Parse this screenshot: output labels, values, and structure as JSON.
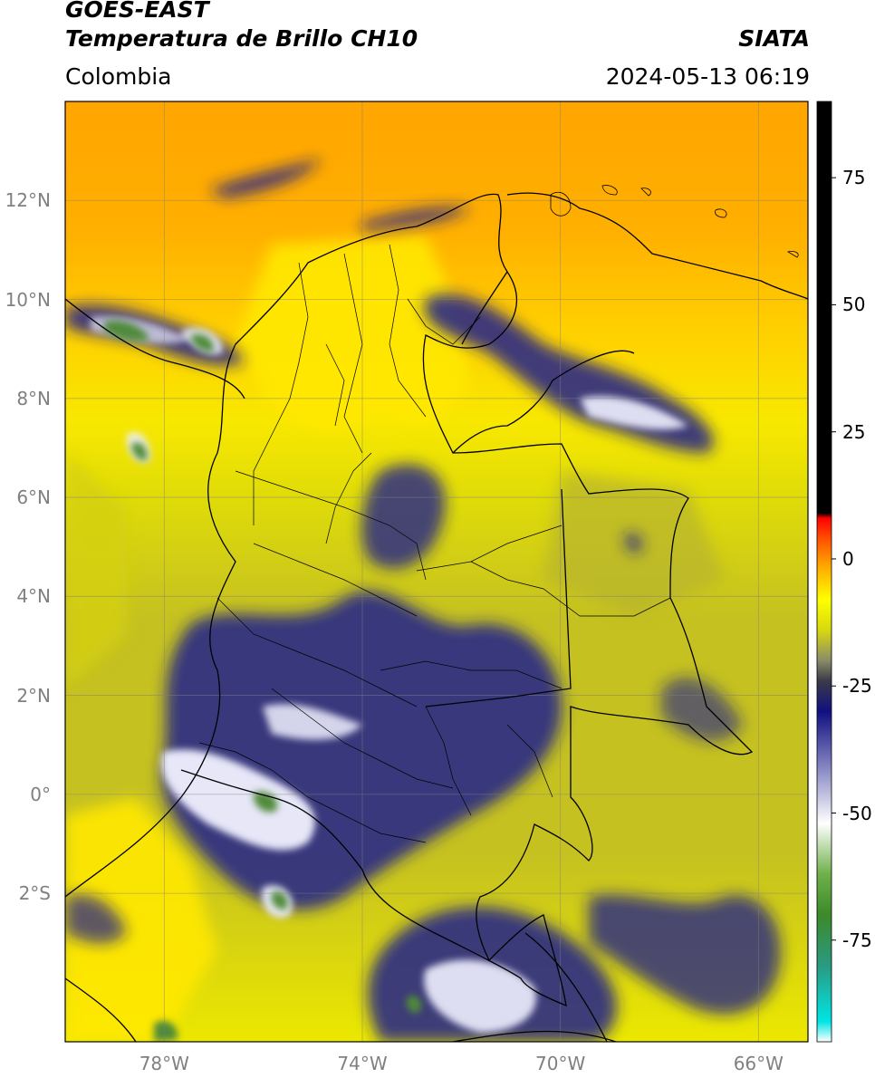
{
  "header": {
    "satellite": "GOES-EAST",
    "product": "Temperatura de Brillo CH10",
    "region": "Colombia",
    "institution": "SIATA",
    "datetime": "2024-05-13 06:19"
  },
  "map": {
    "lon_range": [
      -80,
      -65
    ],
    "lat_range": [
      -5,
      14
    ],
    "lat_ticks": [
      {
        "value": 12,
        "label": "12°N"
      },
      {
        "value": 10,
        "label": "10°N"
      },
      {
        "value": 8,
        "label": "8°N"
      },
      {
        "value": 6,
        "label": "6°N"
      },
      {
        "value": 4,
        "label": "4°N"
      },
      {
        "value": 2,
        "label": "2°N"
      },
      {
        "value": 0,
        "label": "0°"
      },
      {
        "value": -2,
        "label": "2°S"
      }
    ],
    "lon_ticks": [
      {
        "value": -78,
        "label": "78°W"
      },
      {
        "value": -74,
        "label": "74°W"
      },
      {
        "value": -70,
        "label": "70°W"
      },
      {
        "value": -66,
        "label": "66°W"
      }
    ],
    "grid": true
  },
  "colorbar": {
    "range": [
      -95,
      90
    ],
    "ticks": [
      {
        "value": 75,
        "label": "75"
      },
      {
        "value": 50,
        "label": "50"
      },
      {
        "value": 25,
        "label": "25"
      },
      {
        "value": 0,
        "label": "0"
      },
      {
        "value": -25,
        "label": "-25"
      },
      {
        "value": -50,
        "label": "-50"
      },
      {
        "value": -75,
        "label": "-75"
      }
    ],
    "stops": [
      {
        "value": -95,
        "color": "#ffffff"
      },
      {
        "value": -91,
        "color": "#00e5e5"
      },
      {
        "value": -80,
        "color": "#2a9a80"
      },
      {
        "value": -70,
        "color": "#3c8a2a"
      },
      {
        "value": -62,
        "color": "#6fb04a"
      },
      {
        "value": -52,
        "color": "#ffffff"
      },
      {
        "value": -42,
        "color": "#9090c8"
      },
      {
        "value": -30,
        "color": "#101080"
      },
      {
        "value": -24,
        "color": "#3a3a48"
      },
      {
        "value": -20,
        "color": "#8a8a6a"
      },
      {
        "value": -14,
        "color": "#d8d810"
      },
      {
        "value": -8,
        "color": "#ffff00"
      },
      {
        "value": -2,
        "color": "#ffb000"
      },
      {
        "value": 4,
        "color": "#ff5000"
      },
      {
        "value": 8,
        "color": "#ff0000"
      },
      {
        "value": 9,
        "color": "#000000"
      },
      {
        "value": 90,
        "color": "#000000"
      }
    ]
  },
  "colors": {
    "sea": "#ffa500",
    "dry_air": "#ffe800",
    "land_mid": "#c5c121",
    "cloud_blue": "#1e1e8c",
    "cloud_white": "#f0f0ff",
    "cloud_green": "#4f8a3a",
    "border": "#000000",
    "grid": "#808080"
  }
}
